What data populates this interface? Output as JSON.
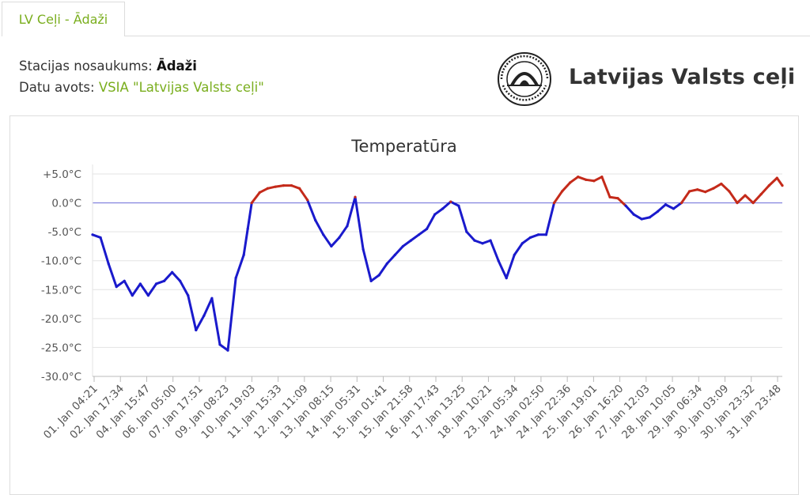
{
  "tab": {
    "label": "LV Ceļi - Ādaži"
  },
  "station": {
    "name_label": "Stacijas nosaukums:",
    "name_value": "Ādaži",
    "source_label": "Datu avots:",
    "source_value": "VSIA \"Latvijas Valsts ceļi\""
  },
  "logo": {
    "text": "Latvijas Valsts ceļi",
    "seal_text": "LATVIJAS VALSTS CEĻI"
  },
  "colors": {
    "accent": "#7aae1e",
    "cold": "#1a1acc",
    "warm": "#c42a1a",
    "zero_line": "#6a6ad8",
    "grid": "#e3e3e3"
  },
  "chart_data": {
    "type": "line",
    "title": "Temperatūra",
    "ylim": [
      -30,
      5
    ],
    "yticks": [
      5,
      0,
      -5,
      -10,
      -15,
      -20,
      -25,
      -30
    ],
    "ytick_labels": [
      "+5.0°C",
      "0.0°C",
      "-5.0°C",
      "-10.0°C",
      "-15.0°C",
      "-20.0°C",
      "-25.0°C",
      "-30.0°C"
    ],
    "xtick_labels": [
      "01. Jan 04:21",
      "02. Jan 17:34",
      "04. Jan 15:47",
      "06. Jan 05:00",
      "07. Jan 17:51",
      "09. Jan 08:23",
      "10. Jan 19:03",
      "11. Jan 15:33",
      "12. Jan 11:09",
      "13. Jan 08:15",
      "14. Jan 05:31",
      "15. Jan 01:41",
      "15. Jan 21:58",
      "16. Jan 17:43",
      "17. Jan 13:25",
      "18. Jan 10:21",
      "23. Jan 05:34",
      "24. Jan 02:50",
      "24. Jan 22:36",
      "25. Jan 19:01",
      "26. Jan 16:20",
      "27. Jan 12:03",
      "28. Jan 10:05",
      "29. Jan 06:34",
      "30. Jan 03:09",
      "30. Jan 23:32",
      "31. Jan 23:48"
    ],
    "grid": true,
    "legend": "none",
    "series": [
      {
        "x": [
          0,
          0.3,
          0.6,
          0.9,
          1.2,
          1.5,
          1.8,
          2.1,
          2.4,
          2.7,
          3.0,
          3.3,
          3.6,
          3.9,
          4.2,
          4.5,
          4.8,
          5.1,
          5.4,
          5.7,
          5.85,
          6.0,
          6.3,
          6.6,
          6.9,
          7.2,
          7.5,
          7.8,
          8.1,
          8.4,
          8.7,
          9.0,
          9.3,
          9.6,
          9.9,
          10.2,
          10.5,
          10.8,
          11.1,
          11.4,
          11.7,
          12.0,
          12.3,
          12.6,
          12.9,
          13.2,
          13.5,
          13.8,
          14.1,
          14.4,
          14.7,
          15.0,
          15.3,
          15.6,
          15.9,
          16.2,
          16.5,
          16.8,
          17.1,
          17.4,
          17.7,
          18.0,
          18.3,
          18.6,
          18.9,
          19.2,
          19.5,
          19.8,
          20.1,
          20.4,
          20.7,
          21.0,
          21.3,
          21.6,
          21.9,
          22.2,
          22.5,
          22.8,
          23.1,
          23.4,
          23.7,
          24.0,
          24.3,
          24.6,
          24.9,
          25.2,
          25.5,
          25.8,
          26.0
        ],
        "y": [
          -5.5,
          -6.0,
          -10.5,
          -14.5,
          -13.5,
          -16.0,
          -14.0,
          -16.0,
          -14.0,
          -13.5,
          -12.0,
          -13.5,
          -16.0,
          -22.0,
          -19.5,
          -16.5,
          -24.5,
          -25.5,
          -13.0,
          -9.0,
          -4.5,
          0.0,
          1.8,
          2.5,
          2.8,
          3.0,
          3.0,
          2.5,
          0.5,
          -3.0,
          -5.5,
          -7.5,
          -6.0,
          -4.0,
          1.0,
          -8.0,
          -13.5,
          -12.5,
          -10.5,
          -9.0,
          -7.5,
          -6.5,
          -5.5,
          -4.5,
          -2.0,
          -1.0,
          0.2,
          -0.5,
          -5.0,
          -6.5,
          -7.0,
          -6.5,
          -10.0,
          -13.0,
          -9.0,
          -7.0,
          -6.0,
          -5.5,
          -5.5,
          0.0,
          2.0,
          3.5,
          4.5,
          4.0,
          3.8,
          4.5,
          1.0,
          0.8,
          -0.5,
          -2.0,
          -2.8,
          -2.5,
          -1.5,
          -0.3,
          -1.0,
          0.0,
          2.0,
          2.3,
          1.9,
          2.5,
          3.3,
          2.0,
          0.0,
          1.3,
          0.0,
          1.5,
          3.0,
          4.3,
          3.0
        ]
      }
    ]
  }
}
